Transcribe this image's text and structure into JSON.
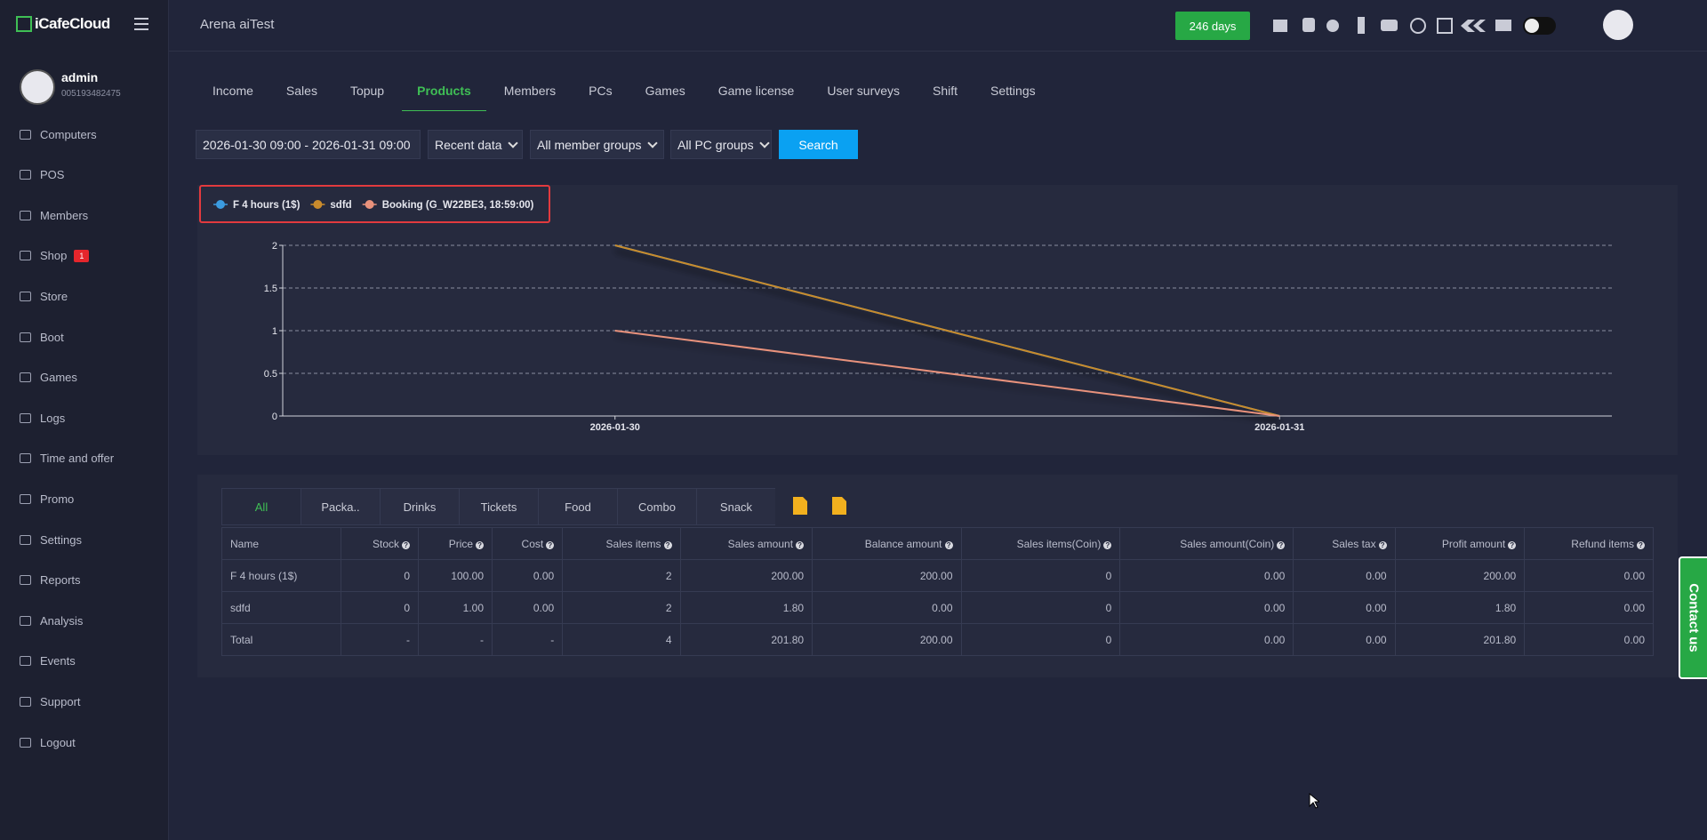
{
  "header": {
    "logo": "iCafeCloud",
    "cafe": "Arena aiTest",
    "days": "246 days"
  },
  "user": {
    "name": "admin",
    "id": "005193482475"
  },
  "sidebar": [
    "Computers",
    "POS",
    "Members",
    "Shop",
    "Store",
    "Boot",
    "Games",
    "Logs",
    "Time and offer",
    "Promo",
    "Settings",
    "Reports",
    "Analysis",
    "Events",
    "Support",
    "Logout"
  ],
  "shop_badge": "1",
  "tabs": [
    "Income",
    "Sales",
    "Topup",
    "Products",
    "Members",
    "PCs",
    "Games",
    "Game license",
    "User surveys",
    "Shift",
    "Settings"
  ],
  "active_tab": 3,
  "filters": {
    "date_range": "2026-01-30 09:00 - 2026-01-31 09:00",
    "data": "Recent data",
    "member_groups": "All member groups",
    "pc_groups": "All PC groups",
    "search": "Search"
  },
  "chart_data": {
    "type": "line",
    "categories": [
      "2026-01-30",
      "2026-01-31"
    ],
    "series": [
      {
        "name": "F 4 hours (1$)",
        "color": "#3b9be0",
        "values": [
          2,
          0
        ]
      },
      {
        "name": "sdfd",
        "color": "#c98b2c",
        "values": [
          2,
          0
        ]
      },
      {
        "name": "Booking (G_W22BE3, 18:59:00)",
        "color": "#e9927c",
        "values": [
          1,
          0
        ]
      }
    ],
    "ylim": [
      0,
      2
    ],
    "yticks": [
      0,
      0.5,
      1,
      1.5,
      2
    ],
    "grid": true
  },
  "product_tabs": [
    "All",
    "Packa..",
    "Drinks",
    "Tickets",
    "Food",
    "Combo",
    "Snack"
  ],
  "active_product_tab": 0,
  "table": {
    "columns": [
      "Name",
      "Stock",
      "Price",
      "Cost",
      "Sales items",
      "Sales amount",
      "Balance amount",
      "Sales items(Coin)",
      "Sales amount(Coin)",
      "Sales tax",
      "Profit amount",
      "Refund items"
    ],
    "rows": [
      [
        "F 4 hours (1$)",
        "0",
        "100.00",
        "0.00",
        "2",
        "200.00",
        "200.00",
        "0",
        "0.00",
        "0.00",
        "200.00",
        "0.00"
      ],
      [
        "sdfd",
        "0",
        "1.00",
        "0.00",
        "2",
        "1.80",
        "0.00",
        "0",
        "0.00",
        "0.00",
        "1.80",
        "0.00"
      ],
      [
        "Total",
        "-",
        "-",
        "-",
        "4",
        "201.80",
        "200.00",
        "0",
        "0.00",
        "0.00",
        "201.80",
        "0.00"
      ]
    ]
  },
  "contact": "Contact us"
}
